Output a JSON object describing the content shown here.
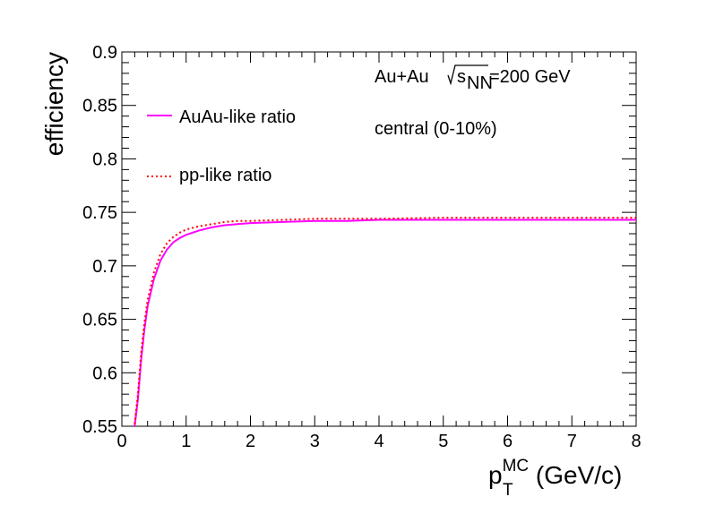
{
  "chart_data": {
    "type": "line",
    "title": "",
    "xlabel": {
      "main": "p",
      "sub": "T",
      "sup": "MC",
      "unit": " (GeV/c)"
    },
    "ylabel": "efficiency",
    "xlim": [
      0,
      8
    ],
    "ylim": [
      0.55,
      0.9
    ],
    "x_ticks": [
      "0",
      "1",
      "2",
      "3",
      "4",
      "5",
      "6",
      "7",
      "8"
    ],
    "y_ticks": [
      "0.55",
      "0.6",
      "0.65",
      "0.7",
      "0.75",
      "0.8",
      "0.85",
      "0.9"
    ],
    "grid": false,
    "legend_position": "top-left",
    "annotations": {
      "system": "Au+Au",
      "energy_sym": "s",
      "energy_sub": "NN",
      "energy_val": "=200 GeV",
      "centrality": "central (0-10%)"
    },
    "series": [
      {
        "name": "AuAu-like ratio",
        "color": "#ff00ff",
        "style": "solid",
        "x": [
          0.2,
          0.25,
          0.3,
          0.35,
          0.4,
          0.5,
          0.6,
          0.7,
          0.8,
          0.9,
          1.0,
          1.2,
          1.4,
          1.6,
          1.8,
          2.0,
          2.5,
          3.0,
          3.5,
          4.0,
          5.0,
          6.0,
          7.0,
          8.0
        ],
        "y": [
          0.55,
          0.575,
          0.612,
          0.64,
          0.662,
          0.688,
          0.705,
          0.715,
          0.722,
          0.726,
          0.729,
          0.733,
          0.736,
          0.738,
          0.739,
          0.74,
          0.741,
          0.742,
          0.742,
          0.743,
          0.743,
          0.743,
          0.743,
          0.743
        ]
      },
      {
        "name": "pp-like ratio",
        "color": "#ff0000",
        "style": "dotted",
        "x": [
          0.2,
          0.25,
          0.3,
          0.35,
          0.4,
          0.5,
          0.6,
          0.7,
          0.8,
          0.9,
          1.0,
          1.2,
          1.4,
          1.6,
          1.8,
          2.0,
          2.5,
          3.0,
          3.5,
          4.0,
          5.0,
          6.0,
          7.0,
          8.0
        ],
        "y": [
          0.552,
          0.58,
          0.618,
          0.646,
          0.668,
          0.694,
          0.711,
          0.721,
          0.727,
          0.731,
          0.734,
          0.737,
          0.739,
          0.741,
          0.742,
          0.742,
          0.743,
          0.744,
          0.744,
          0.744,
          0.745,
          0.745,
          0.745,
          0.745
        ]
      }
    ]
  }
}
